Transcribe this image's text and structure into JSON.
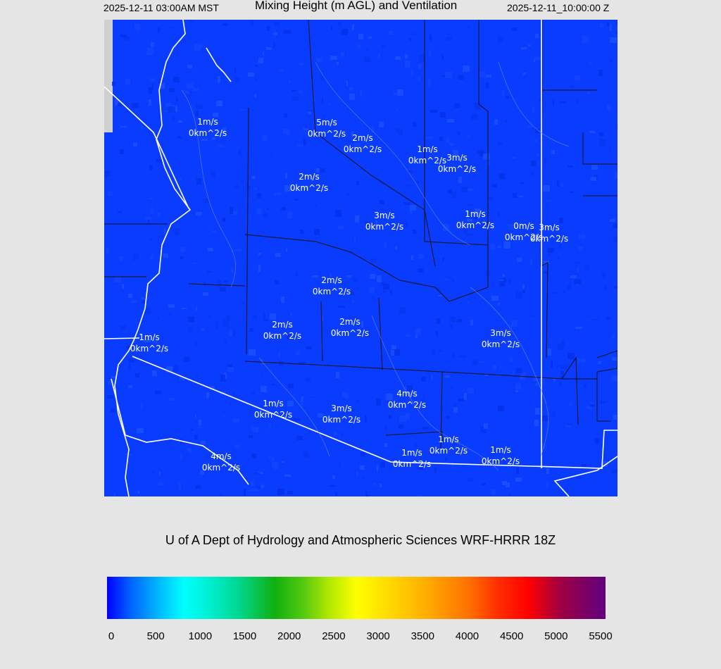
{
  "header": {
    "title": "Mixing Height (m AGL) and Ventilation",
    "local_time": "2025-12-11 03:00AM MST",
    "utc_time": "2025-12-11_10:00:00 Z"
  },
  "credit": "U of A Dept of Hydrology and Atmospheric Sciences WRF-HRRR 18Z",
  "map": {
    "background_color": "#0a3cff",
    "labels": [
      {
        "wind": "1m/s",
        "vent": "0km^2/s"
      },
      {
        "wind": "5m/s",
        "vent": "0km^2/s"
      },
      {
        "wind": "2m/s",
        "vent": "0km^2/s"
      },
      {
        "wind": "1m/s",
        "vent": "0km^2/s"
      },
      {
        "wind": "3m/s",
        "vent": "0km^2/s"
      },
      {
        "wind": "2m/s",
        "vent": "0km^2/s"
      },
      {
        "wind": "3m/s",
        "vent": "0km^2/s"
      },
      {
        "wind": "1m/s",
        "vent": "0km^2/s"
      },
      {
        "wind": "0m/s",
        "vent": "0km^2/s"
      },
      {
        "wind": "3m/s",
        "vent": "0km^2/s"
      },
      {
        "wind": "2m/s",
        "vent": "0km^2/s"
      },
      {
        "wind": "2m/s",
        "vent": "0km^2/s"
      },
      {
        "wind": "2m/s",
        "vent": "0km^2/s"
      },
      {
        "wind": "1m/s",
        "vent": "0km^2/s"
      },
      {
        "wind": "3m/s",
        "vent": "0km^2/s"
      },
      {
        "wind": "4m/s",
        "vent": "0km^2/s"
      },
      {
        "wind": "1m/s",
        "vent": "0km^2/s"
      },
      {
        "wind": "3m/s",
        "vent": "0km^2/s"
      },
      {
        "wind": "1m/s",
        "vent": "0km^2/s"
      },
      {
        "wind": "1m/s",
        "vent": "0km^2/s"
      },
      {
        "wind": "1m/s",
        "vent": "0km^2/s"
      },
      {
        "wind": "4m/s",
        "vent": "0km^2/s"
      }
    ]
  },
  "colorbar": {
    "min": 0,
    "max": 5500,
    "ticks": [
      "0",
      "500",
      "1000",
      "1500",
      "2000",
      "2500",
      "3000",
      "3500",
      "4000",
      "4500",
      "5000",
      "5500"
    ],
    "stops": [
      {
        "v": 0,
        "c": "#0000ff"
      },
      {
        "v": 250,
        "c": "#0060ff"
      },
      {
        "v": 600,
        "c": "#00c0ff"
      },
      {
        "v": 850,
        "c": "#00ffff"
      },
      {
        "v": 1100,
        "c": "#00f0d8"
      },
      {
        "v": 1450,
        "c": "#00d890"
      },
      {
        "v": 1850,
        "c": "#10b010"
      },
      {
        "v": 2150,
        "c": "#50c810"
      },
      {
        "v": 2450,
        "c": "#b0e800"
      },
      {
        "v": 2750,
        "c": "#ffff00"
      },
      {
        "v": 3050,
        "c": "#ffe000"
      },
      {
        "v": 3500,
        "c": "#ffb000"
      },
      {
        "v": 4000,
        "c": "#ff7000"
      },
      {
        "v": 4300,
        "c": "#ff3000"
      },
      {
        "v": 4650,
        "c": "#ff0000"
      },
      {
        "v": 5000,
        "c": "#a00040"
      },
      {
        "v": 5500,
        "c": "#600080"
      }
    ]
  }
}
